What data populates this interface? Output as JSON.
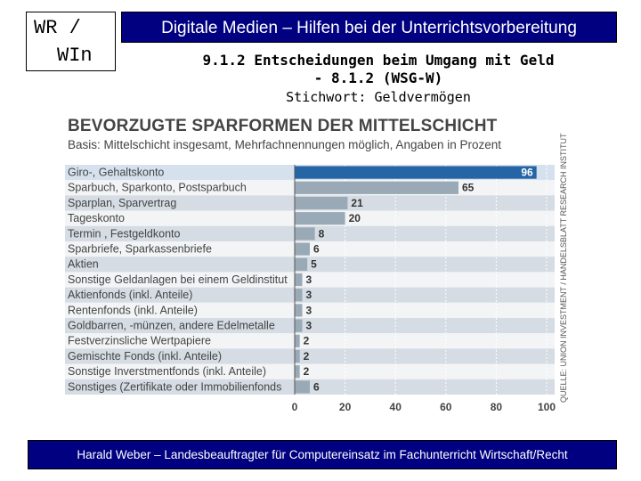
{
  "logo": {
    "line1": "WR /",
    "line2": "WIn"
  },
  "header": {
    "title": "Digitale Medien – Hilfen bei der Unterrichtsvorbereitung"
  },
  "subtitle": {
    "line1": "9.1.2 Entscheidungen beim Umgang mit Geld",
    "line2": "- 8.1.2 (WSG-W)",
    "line3": "Stichwort: Geldvermögen"
  },
  "chart_data": {
    "type": "bar",
    "orientation": "horizontal",
    "title": "BEVORZUGTE SPARFORMEN DER MITTELSCHICHT",
    "subtitle": "Basis: Mittelschicht insgesamt, Mehrfachnennungen möglich, Angaben in Prozent",
    "source": "QUELLE: UNION INVESTMENT / HANDELSBLATT RESEARCH INSTITUT",
    "categories": [
      "Giro-, Gehaltskonto",
      "Sparbuch, Sparkonto, Postsparbuch",
      "Sparplan, Sparvertrag",
      "Tageskonto",
      "Termin , Festgeldkonto",
      "Sparbriefe, Sparkassenbriefe",
      "Aktien",
      "Sonstige Geldanlagen bei einem Geldinstitut",
      "Aktienfonds (inkl. Anteile)",
      "Rentenfonds (inkl. Anteile)",
      "Goldbarren, -münzen, andere Edelmetalle",
      "Festverzinsliche Wertpapiere",
      "Gemischte Fonds (inkl. Anteile)",
      "Sonstige Inverstmentfonds (inkl. Anteile)",
      "Sonstiges (Zertifikate oder Immobilienfonds"
    ],
    "values": [
      96,
      65,
      21,
      20,
      8,
      6,
      5,
      3,
      3,
      3,
      3,
      2,
      2,
      2,
      6
    ],
    "xlim": [
      0,
      100
    ],
    "xticks": [
      0,
      20,
      40,
      60,
      80,
      100
    ],
    "highlight_index": 0,
    "colors": {
      "highlight": "#2565a6",
      "bar": "#9aa9b6",
      "stripe_dark": "#d5dce3",
      "stripe_light": "#f2f4f6",
      "highlight_row": "#d5e2ee",
      "label": "#444444",
      "title": "#444444"
    }
  },
  "footer": {
    "text": "Harald Weber – Landesbeauftragter für Computereinsatz im Fachunterricht Wirtschaft/Recht"
  }
}
